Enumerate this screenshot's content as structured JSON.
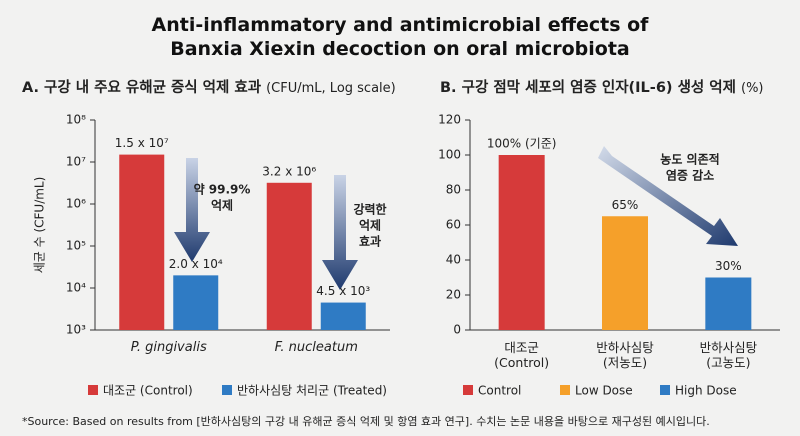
{
  "title_lines": [
    "Anti-inflammatory and antimicrobial effects of",
    "Banxia Xiexin decoction on oral microbiota"
  ],
  "footnote": "*Source: Based on results from [반하사심탕의 구강 내 유해균 증식 억제 및 항염 효과 연구]. 수치는 논문 내용을 바탕으로 재구성된 예시입니다.",
  "chart_data": [
    {
      "type": "bar",
      "title": "A. 구강 내 주요 유해균 증식 억제 효과",
      "subtitle": "(CFU/mL, Log scale)",
      "ylabel": "세균 수 (CFU/mL)",
      "log_scale": true,
      "categories": [
        "P. gingivalis",
        "F. nucleatum"
      ],
      "series": [
        {
          "name": "대조군 (Control)",
          "color": "#d63a3a",
          "values": [
            15000000,
            3200000
          ],
          "value_labels": [
            "1.5 x 10⁷",
            "3.2 x 10⁶"
          ]
        },
        {
          "name": "반하사심탕 처리군 (Treated)",
          "color": "#2f7bc4",
          "values": [
            20000,
            4500
          ],
          "value_labels": [
            "2.0 x 10⁴",
            "4.5 x 10³"
          ]
        }
      ],
      "ylim": [
        1000,
        100000000
      ],
      "yticks": [
        {
          "value": 1000,
          "label": "10³"
        },
        {
          "value": 10000,
          "label": "10⁴"
        },
        {
          "value": 100000,
          "label": "10⁵"
        },
        {
          "value": 1000000,
          "label": "10⁶"
        },
        {
          "value": 10000000,
          "label": "10⁷"
        },
        {
          "value": 100000000,
          "label": "10⁸"
        }
      ],
      "annotations": [
        {
          "lines": [
            "약 99.9%",
            "억제"
          ]
        },
        {
          "lines": [
            "강력한",
            "억제",
            "효과"
          ]
        }
      ]
    },
    {
      "type": "bar",
      "title": "B. 구강 점막 세포의 염증 인자(IL-6) 생성 억제",
      "subtitle": "(%)",
      "categories": [
        "대조군\n(Control)",
        "반하사심탕\n(저농도)",
        "반하사심탕\n(고농도)"
      ],
      "values": [
        100,
        65,
        30
      ],
      "value_labels": [
        "100% (기준)",
        "65%",
        "30%"
      ],
      "colors": [
        "#d63a3a",
        "#f5a02a",
        "#2f7bc4"
      ],
      "legend": [
        "Control",
        "Low Dose",
        "High Dose"
      ],
      "ylim": [
        0,
        120
      ],
      "yticks": [
        0,
        20,
        40,
        60,
        80,
        100,
        120
      ],
      "annotations": [
        {
          "lines": [
            "농도 의존적",
            "염증 감소"
          ]
        }
      ]
    }
  ]
}
